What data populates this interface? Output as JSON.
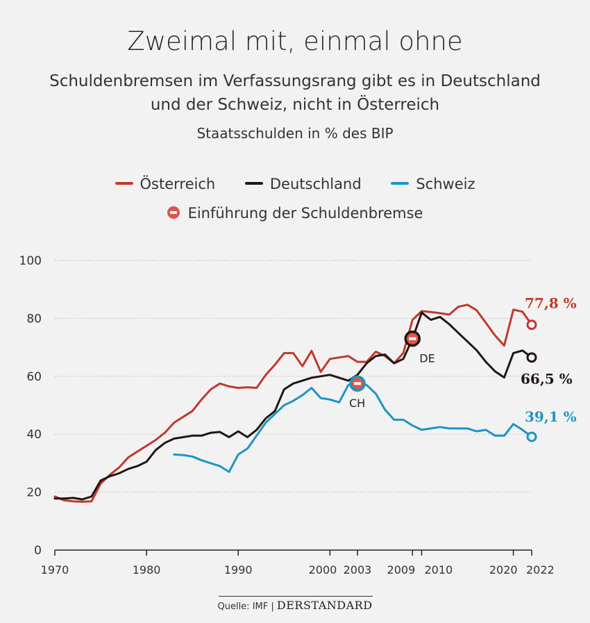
{
  "title": "Zweimal mit, einmal ohne",
  "subtitle_line1": "Schuldenbremsen im Verfassungsrang gibt es in Deutschland",
  "subtitle_line2": "und der Schweiz, nicht in Österreich",
  "unit_label": "Staatsschulden in % des BIP",
  "legend": {
    "austria": "Österreich",
    "germany": "Deutschland",
    "switzerland": "Schweiz",
    "marker": "Einführung der Schuldenbremse"
  },
  "colors": {
    "austria": "#c0392b",
    "germany": "#201614",
    "switzerland": "#1b95c6",
    "marker": "#e0554a",
    "background": "#f2f2f2"
  },
  "footer": {
    "source": "Quelle: IMF",
    "separator": "|",
    "brand": "DERSTANDARD"
  },
  "chart_data": {
    "type": "line",
    "ylim": [
      0,
      100
    ],
    "yticks": [
      0,
      20,
      40,
      60,
      80,
      100
    ],
    "xlim": [
      1970,
      2022
    ],
    "xticks": [
      1970,
      1980,
      1990,
      2000,
      2003,
      2009,
      2010,
      2020,
      2022
    ],
    "grid": true,
    "series": [
      {
        "name": "Österreich",
        "key": "austria",
        "end_label": "77,8 %",
        "x": [
          1970,
          1971,
          1972,
          1973,
          1974,
          1975,
          1976,
          1977,
          1978,
          1979,
          1980,
          1981,
          1982,
          1983,
          1984,
          1985,
          1986,
          1987,
          1988,
          1989,
          1990,
          1991,
          1992,
          1993,
          1994,
          1995,
          1996,
          1997,
          1998,
          1999,
          2000,
          2001,
          2002,
          2003,
          2004,
          2005,
          2006,
          2007,
          2008,
          2009,
          2010,
          2011,
          2012,
          2013,
          2014,
          2015,
          2016,
          2017,
          2018,
          2019,
          2020,
          2021,
          2022
        ],
        "values": [
          18.5,
          17.2,
          16.8,
          16.7,
          16.8,
          23.0,
          26.0,
          28.5,
          32.0,
          34.0,
          36.0,
          38.0,
          40.5,
          44.0,
          46.0,
          48.0,
          52.0,
          55.5,
          57.5,
          56.5,
          56.0,
          56.2,
          56.0,
          60.5,
          64.0,
          68.0,
          68.0,
          63.5,
          68.8,
          61.5,
          66.0,
          66.5,
          67.0,
          65.0,
          65.0,
          68.5,
          67.0,
          64.5,
          68.0,
          79.5,
          82.5,
          82.2,
          81.8,
          81.3,
          84.0,
          84.7,
          82.8,
          78.5,
          74.1,
          70.6,
          83.0,
          82.3,
          77.8
        ],
        "markers": []
      },
      {
        "name": "Deutschland",
        "key": "germany",
        "end_label": "66,5 %",
        "x": [
          1970,
          1971,
          1972,
          1973,
          1974,
          1975,
          1976,
          1977,
          1978,
          1979,
          1980,
          1981,
          1982,
          1983,
          1984,
          1985,
          1986,
          1987,
          1988,
          1989,
          1990,
          1991,
          1992,
          1993,
          1994,
          1995,
          1996,
          1997,
          1998,
          1999,
          2000,
          2001,
          2002,
          2003,
          2004,
          2005,
          2006,
          2007,
          2008,
          2009,
          2010,
          2011,
          2012,
          2013,
          2014,
          2015,
          2016,
          2017,
          2018,
          2019,
          2020,
          2021,
          2022
        ],
        "values": [
          17.8,
          17.8,
          18.0,
          17.5,
          18.5,
          24.0,
          25.5,
          26.5,
          28.0,
          29.0,
          30.5,
          34.5,
          37.0,
          38.5,
          39.0,
          39.5,
          39.5,
          40.5,
          40.8,
          39.0,
          41.0,
          39.0,
          41.5,
          45.5,
          48.0,
          55.5,
          57.5,
          58.5,
          59.5,
          60.0,
          60.5,
          59.5,
          58.5,
          60.5,
          64.5,
          67.0,
          67.5,
          64.5,
          66.0,
          73.0,
          82.0,
          79.5,
          80.5,
          78.0,
          75.0,
          72.0,
          69.0,
          65.0,
          61.7,
          59.6,
          68.0,
          68.9,
          66.5
        ],
        "markers": [
          {
            "x": 2009,
            "y": 73.0,
            "label": "DE"
          }
        ]
      },
      {
        "name": "Schweiz",
        "key": "switzerland",
        "end_label": "39,1 %",
        "x": [
          1983,
          1984,
          1985,
          1986,
          1987,
          1988,
          1989,
          1990,
          1991,
          1992,
          1993,
          1994,
          1995,
          1996,
          1997,
          1998,
          1999,
          2000,
          2001,
          2002,
          2003,
          2004,
          2005,
          2006,
          2007,
          2008,
          2009,
          2010,
          2011,
          2012,
          2013,
          2014,
          2015,
          2016,
          2017,
          2018,
          2019,
          2020,
          2021,
          2022
        ],
        "values": [
          33.0,
          32.8,
          32.3,
          31.0,
          30.0,
          29.0,
          27.0,
          33.0,
          35.0,
          39.5,
          44.0,
          47.0,
          50.0,
          51.5,
          53.5,
          56.0,
          52.5,
          52.0,
          51.0,
          57.0,
          57.5,
          57.0,
          54.0,
          48.5,
          45.0,
          45.0,
          43.0,
          41.5,
          42.0,
          42.5,
          42.0,
          42.0,
          42.0,
          41.0,
          41.5,
          39.5,
          39.5,
          43.5,
          41.5,
          39.1
        ],
        "markers": [
          {
            "x": 2003,
            "y": 57.5,
            "label": "CH"
          }
        ]
      }
    ]
  }
}
